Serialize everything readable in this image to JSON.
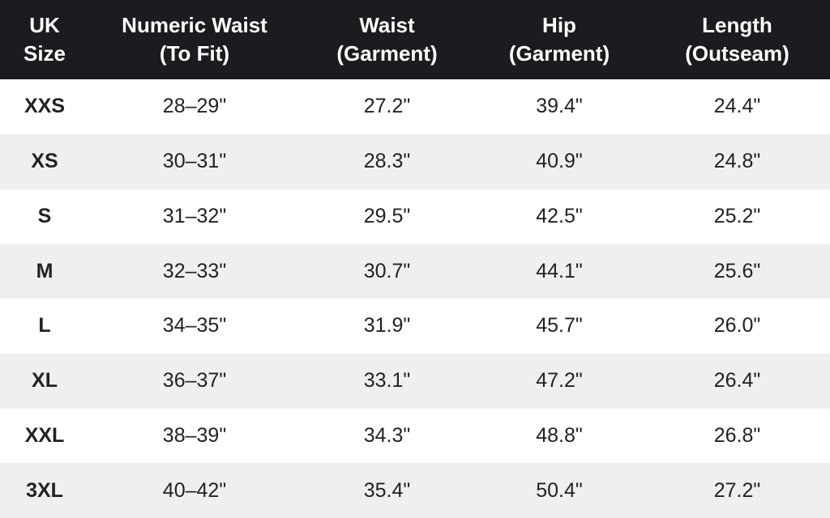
{
  "table": {
    "header": [
      [
        "UK",
        "Size"
      ],
      [
        "Numeric Waist",
        "(To Fit)"
      ],
      [
        "Waist",
        "(Garment)"
      ],
      [
        "Hip",
        "(Garment)"
      ],
      [
        "Length",
        "(Outseam)"
      ]
    ],
    "rows": [
      [
        "XXS",
        "28–29\"",
        "27.2\"",
        "39.4\"",
        "24.4\""
      ],
      [
        "XS",
        "30–31\"",
        "28.3\"",
        "40.9\"",
        "24.8\""
      ],
      [
        "S",
        "31–32\"",
        "29.5\"",
        "42.5\"",
        "25.2\""
      ],
      [
        "M",
        "32–33\"",
        "30.7\"",
        "44.1\"",
        "25.6\""
      ],
      [
        "L",
        "34–35\"",
        "31.9\"",
        "45.7\"",
        "26.0\""
      ],
      [
        "XL",
        "36–37\"",
        "33.1\"",
        "47.2\"",
        "26.4\""
      ],
      [
        "XXL",
        "38–39\"",
        "34.3\"",
        "48.8\"",
        "26.8\""
      ],
      [
        "3XL",
        "40–42\"",
        "35.4\"",
        "50.4\"",
        "27.2\""
      ]
    ]
  }
}
